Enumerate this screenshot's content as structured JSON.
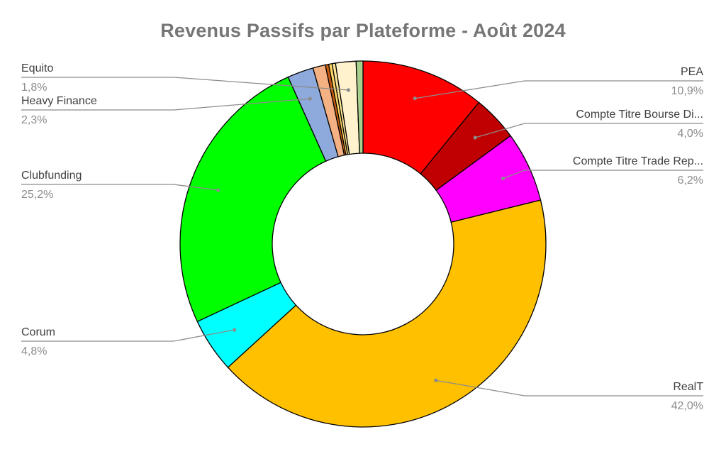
{
  "chart_data": {
    "type": "pie",
    "donut": true,
    "title": "Revenus Passifs par Plateforme - Août 2024",
    "slices": [
      {
        "label": "PEA",
        "value": 10.9,
        "pct_text": "10,9%",
        "color": "#ff0000"
      },
      {
        "label": "Compte Titre Bourse Di...",
        "value": 4.0,
        "pct_text": "4,0%",
        "color": "#c00000"
      },
      {
        "label": "Compte Titre Trade Rep...",
        "value": 6.2,
        "pct_text": "6,2%",
        "color": "#ff00ff"
      },
      {
        "label": "RealT",
        "value": 42.0,
        "pct_text": "42,0%",
        "color": "#ffc000"
      },
      {
        "label": "Corum",
        "value": 4.8,
        "pct_text": "4,8%",
        "color": "#00ffff"
      },
      {
        "label": "Clubfunding",
        "value": 25.2,
        "pct_text": "25,2%",
        "color": "#00ff00"
      },
      {
        "label": "Heavy Finance",
        "value": 2.3,
        "pct_text": "2,3%",
        "color": "#8ea9db"
      },
      {
        "label": "",
        "value": 1.1,
        "pct_text": "",
        "color": "#f4b183"
      },
      {
        "label": "",
        "value": 0.3,
        "pct_text": "",
        "color": "#c55a11"
      },
      {
        "label": "",
        "value": 0.3,
        "pct_text": "",
        "color": "#ffd966"
      },
      {
        "label": "",
        "value": 0.3,
        "pct_text": "",
        "color": "#ffe699"
      },
      {
        "label": "Equito",
        "value": 1.8,
        "pct_text": "1,8%",
        "color": "#fff2cc"
      },
      {
        "label": "",
        "value": 0.6,
        "pct_text": "",
        "color": "#a9d18e"
      }
    ]
  }
}
